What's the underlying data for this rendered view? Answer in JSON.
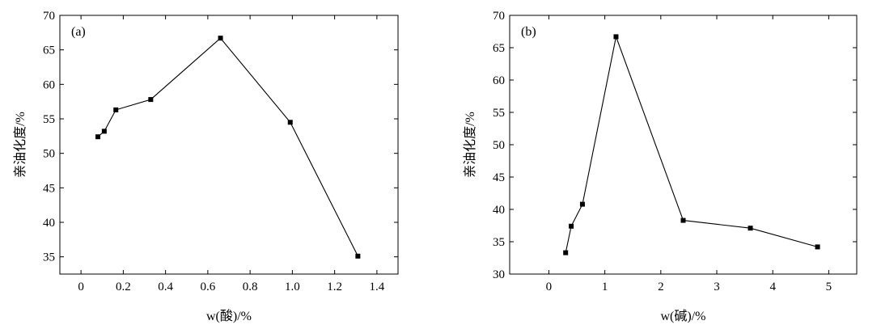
{
  "chart_data": [
    {
      "type": "line",
      "panel_label": "(a)",
      "xlabel": "w(酸)/%",
      "ylabel": "亲油化度/%",
      "xlim": [
        -0.1,
        1.5
      ],
      "ylim": [
        32.5,
        70
      ],
      "x_ticks": [
        0,
        0.2,
        0.4,
        0.6,
        0.8,
        1.0,
        1.2,
        1.4
      ],
      "x_tick_labels": [
        "0",
        "0.2",
        "0.4",
        "0.6",
        "0.8",
        "1.0",
        "1.2",
        "1.4"
      ],
      "y_ticks": [
        35,
        40,
        45,
        50,
        55,
        60,
        65,
        70
      ],
      "y_tick_labels": [
        "35",
        "40",
        "45",
        "50",
        "55",
        "60",
        "65",
        "70"
      ],
      "series": [
        {
          "x": [
            0.08,
            0.11,
            0.165,
            0.33,
            0.66,
            0.99,
            1.31
          ],
          "y": [
            52.4,
            53.2,
            56.3,
            57.8,
            66.7,
            54.5,
            35.1
          ]
        }
      ]
    },
    {
      "type": "line",
      "panel_label": "(b)",
      "xlabel": "w(碱)/%",
      "ylabel": "亲油化度/%",
      "xlim": [
        -0.7,
        5.5
      ],
      "ylim": [
        30,
        70
      ],
      "x_ticks": [
        0,
        1,
        2,
        3,
        4,
        5
      ],
      "x_tick_labels": [
        "0",
        "1",
        "2",
        "3",
        "4",
        "5"
      ],
      "y_ticks": [
        30,
        35,
        40,
        45,
        50,
        55,
        60,
        65,
        70
      ],
      "y_tick_labels": [
        "30",
        "35",
        "40",
        "45",
        "50",
        "55",
        "60",
        "65",
        "70"
      ],
      "series": [
        {
          "x": [
            0.3,
            0.4,
            0.6,
            1.2,
            2.4,
            3.6,
            4.8
          ],
          "y": [
            33.3,
            37.4,
            40.8,
            66.7,
            38.3,
            37.1,
            34.2
          ]
        }
      ]
    }
  ]
}
